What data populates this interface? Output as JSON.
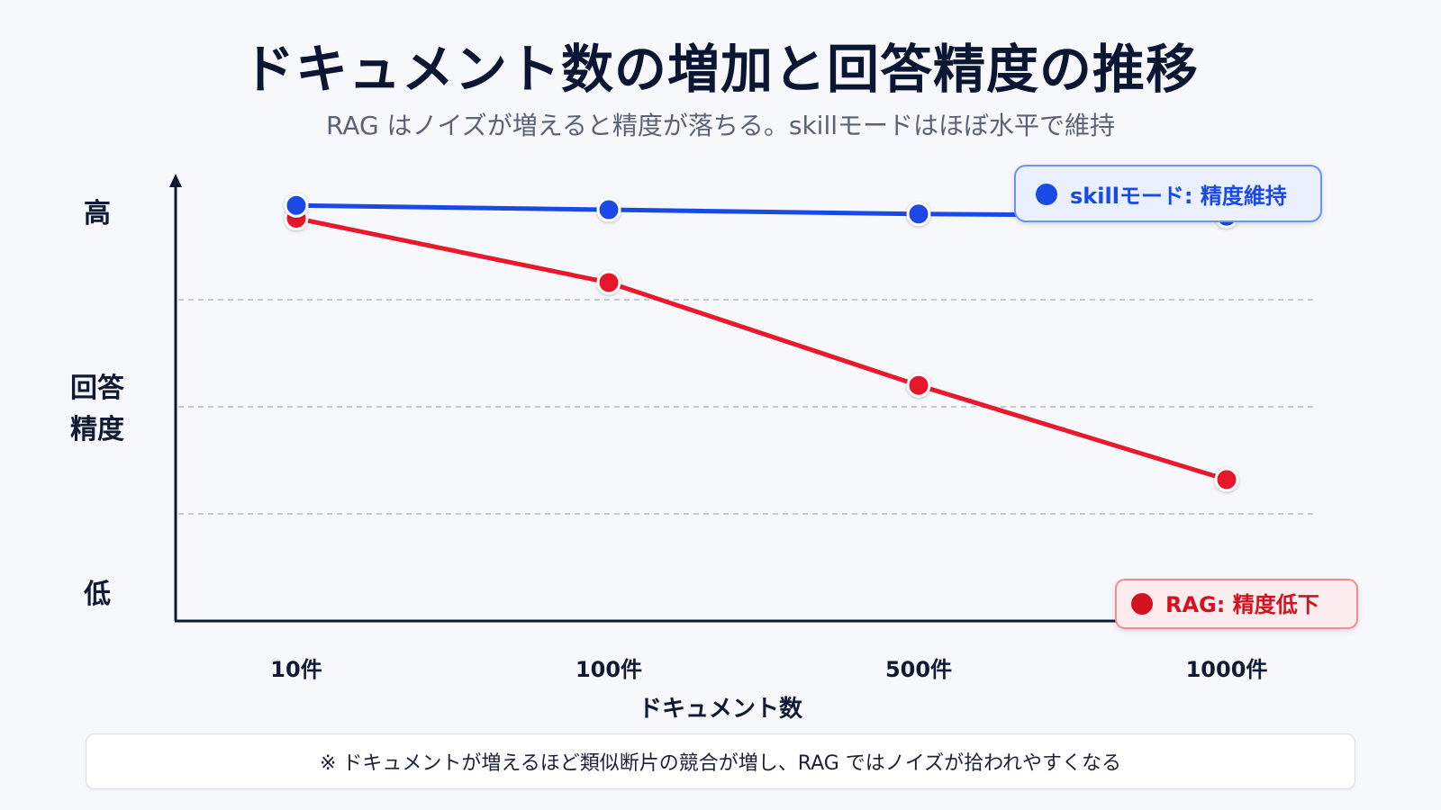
{
  "title": "ドキュメント数の増加と回答精度の推移",
  "subtitle": "RAG はノイズが増えると精度が落ちる。skillモードはほぼ水平で維持",
  "footnote": "※ ドキュメントが増えるほど類似断片の競合が増し、RAG ではノイズが拾われやすくなる",
  "colors": {
    "skill": "#1a4ae6",
    "rag": "#e8192c",
    "axis": "#0f1a33",
    "grid": "#b5bac6"
  },
  "chart_data": {
    "type": "line",
    "categories": [
      "10件",
      "100件",
      "500件",
      "1000件"
    ],
    "xlabel": "ドキュメント数",
    "ylabel": "回答精度",
    "ylabel_lines": [
      "回答",
      "精度"
    ],
    "y_high_label": "高",
    "y_low_label": "低",
    "ylim": [
      0,
      100
    ],
    "grid": true,
    "series": [
      {
        "key": "skill",
        "name": "skillモード: 精度維持",
        "values": [
          97,
          96,
          95,
          94.5
        ]
      },
      {
        "key": "rag",
        "name": "RAG: 精度低下",
        "values": [
          94,
          79,
          55,
          33
        ]
      }
    ]
  }
}
